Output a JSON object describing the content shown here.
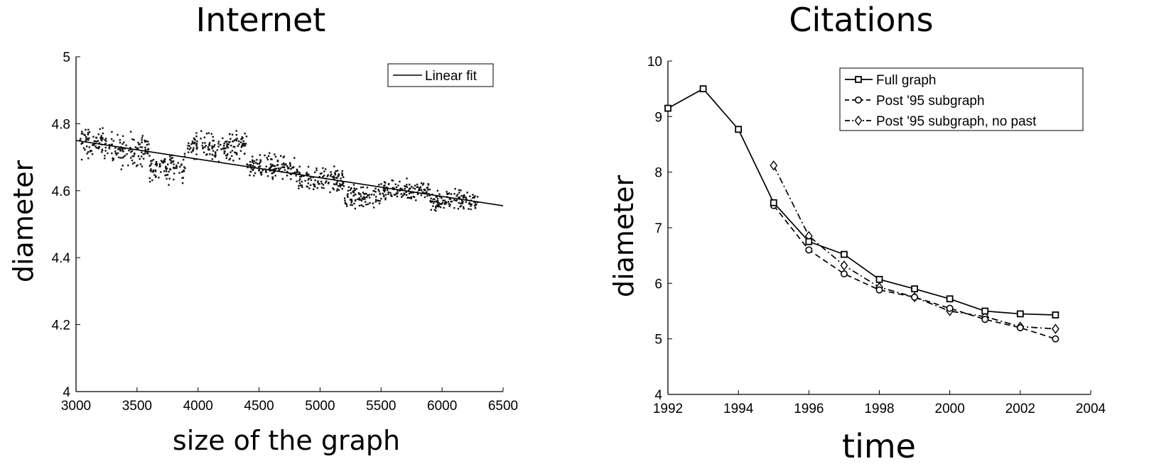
{
  "chart_data": [
    {
      "type": "scatter",
      "title": "Internet",
      "xlabel": "size of the graph",
      "ylabel": "diameter",
      "xlim": [
        3000,
        6500
      ],
      "ylim": [
        4,
        5
      ],
      "xticks": [
        "3000",
        "3500",
        "4000",
        "4500",
        "5000",
        "5500",
        "6000",
        "6500"
      ],
      "yticks": [
        "4",
        "4.2",
        "4.4",
        "4.6",
        "4.8",
        "5"
      ],
      "legend_position": "top-right",
      "grid": false,
      "series": [
        {
          "name": "Linear fit",
          "kind": "line",
          "x": [
            3000,
            6500
          ],
          "y": [
            4.75,
            4.555
          ]
        }
      ],
      "scatter_clusters": [
        {
          "x_range": [
            3020,
            3300
          ],
          "y_center": 4.74,
          "y_spread": 0.045
        },
        {
          "x_range": [
            3300,
            3600
          ],
          "y_center": 4.72,
          "y_spread": 0.05
        },
        {
          "x_range": [
            3600,
            3900
          ],
          "y_center": 4.67,
          "y_spread": 0.045
        },
        {
          "x_range": [
            3900,
            4400
          ],
          "y_center": 4.735,
          "y_spread": 0.04
        },
        {
          "x_range": [
            4400,
            4800
          ],
          "y_center": 4.67,
          "y_spread": 0.035
        },
        {
          "x_range": [
            4800,
            5200
          ],
          "y_center": 4.63,
          "y_spread": 0.04
        },
        {
          "x_range": [
            5200,
            5500
          ],
          "y_center": 4.58,
          "y_spread": 0.04
        },
        {
          "x_range": [
            5500,
            5900
          ],
          "y_center": 4.6,
          "y_spread": 0.03
        },
        {
          "x_range": [
            5900,
            6300
          ],
          "y_center": 4.57,
          "y_spread": 0.03
        }
      ]
    },
    {
      "type": "line",
      "title": "Citations",
      "xlabel": "time",
      "ylabel": "diameter",
      "xlim": [
        1992,
        2004
      ],
      "ylim": [
        4,
        10
      ],
      "xticks": [
        "1992",
        "1994",
        "1996",
        "1998",
        "2000",
        "2002",
        "2004"
      ],
      "yticks": [
        "4",
        "5",
        "6",
        "7",
        "8",
        "9",
        "10"
      ],
      "legend_position": "top-right",
      "grid": false,
      "series": [
        {
          "name": "Full graph",
          "line_style": "solid",
          "marker": "square",
          "x": [
            1992,
            1993,
            1994,
            1995,
            1996,
            1997,
            1998,
            1999,
            2000,
            2001,
            2002,
            2003
          ],
          "y": [
            9.15,
            9.5,
            8.77,
            7.45,
            6.75,
            6.52,
            6.07,
            5.9,
            5.72,
            5.5,
            5.45,
            5.43
          ]
        },
        {
          "name": "Post '95 subgraph",
          "line_style": "dashed",
          "marker": "circle",
          "x": [
            1995,
            1996,
            1997,
            1998,
            1999,
            2000,
            2001,
            2002,
            2003
          ],
          "y": [
            7.4,
            6.6,
            6.17,
            5.88,
            5.75,
            5.55,
            5.35,
            5.2,
            5.0
          ]
        },
        {
          "name": "Post '95 subgraph, no past",
          "line_style": "dashdot",
          "marker": "diamond",
          "x": [
            1995,
            1996,
            1997,
            1998,
            1999,
            2000,
            2001,
            2002,
            2003
          ],
          "y": [
            8.12,
            6.85,
            6.32,
            5.93,
            5.75,
            5.5,
            5.4,
            5.22,
            5.18
          ]
        }
      ]
    }
  ]
}
